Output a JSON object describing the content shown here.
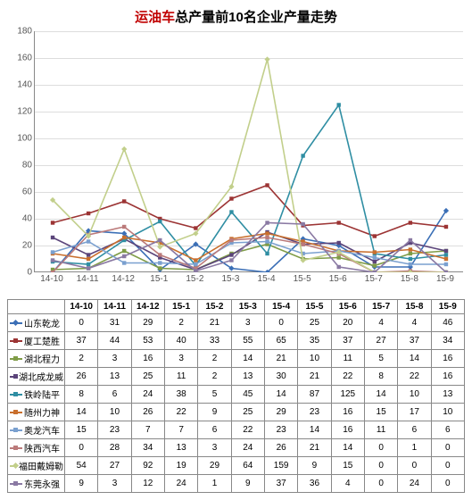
{
  "title_parts": {
    "red1": "运油车",
    "mid": "总产量前10名企业产量走势"
  },
  "chart": {
    "type": "line",
    "ylim": [
      0,
      180
    ],
    "ytick_step": 20,
    "grid_color": "#dddddd",
    "background_color": "#ffffff",
    "axis_font_size": 10,
    "categories": [
      "14-10",
      "14-11",
      "14-12",
      "15-1",
      "15-2",
      "15-3",
      "15-4",
      "15-5",
      "15-6",
      "15-7",
      "15-8",
      "15-9"
    ],
    "series": [
      {
        "name": "山东乾龙",
        "color": "#3b6fb6",
        "marker": "diamond",
        "values": [
          0,
          31,
          29,
          2,
          21,
          3,
          0,
          25,
          20,
          4,
          4,
          46
        ]
      },
      {
        "name": "厦工楚胜",
        "color": "#9c3434",
        "marker": "square",
        "values": [
          37,
          44,
          53,
          40,
          33,
          55,
          65,
          35,
          37,
          27,
          37,
          34
        ]
      },
      {
        "name": "湖北程力",
        "color": "#7f9c47",
        "marker": "triangle",
        "values": [
          2,
          3,
          16,
          3,
          2,
          14,
          21,
          10,
          11,
          5,
          14,
          16
        ]
      },
      {
        "name": "湖北成龙威",
        "color": "#5b447a",
        "marker": "x",
        "values": [
          26,
          13,
          25,
          11,
          2,
          13,
          30,
          21,
          22,
          8,
          22,
          16
        ]
      },
      {
        "name": "铁岭陆平",
        "color": "#2f8ea3",
        "marker": "star",
        "values": [
          8,
          6,
          24,
          38,
          5,
          45,
          14,
          87,
          125,
          14,
          10,
          13
        ]
      },
      {
        "name": "随州力神",
        "color": "#c96f2d",
        "marker": "circle",
        "values": [
          14,
          10,
          26,
          22,
          9,
          25,
          29,
          23,
          16,
          15,
          17,
          10
        ]
      },
      {
        "name": "奥龙汽车",
        "color": "#7aa0cf",
        "marker": "plus",
        "values": [
          15,
          23,
          7,
          7,
          6,
          22,
          23,
          14,
          16,
          11,
          6,
          6
        ]
      },
      {
        "name": "陕西汽车",
        "color": "#bb7a7a",
        "marker": "dash",
        "values": [
          0,
          28,
          34,
          13,
          3,
          24,
          26,
          21,
          14,
          0,
          1,
          0
        ]
      },
      {
        "name": "福田戴姆勒",
        "color": "#c2cf8b",
        "marker": "diamond",
        "values": [
          54,
          27,
          92,
          19,
          29,
          64,
          159,
          9,
          15,
          0,
          0,
          0
        ]
      },
      {
        "name": "东莞永强",
        "color": "#8a79a3",
        "marker": "square",
        "values": [
          9,
          3,
          12,
          24,
          1,
          9,
          37,
          36,
          4,
          0,
          24,
          0
        ]
      }
    ]
  }
}
